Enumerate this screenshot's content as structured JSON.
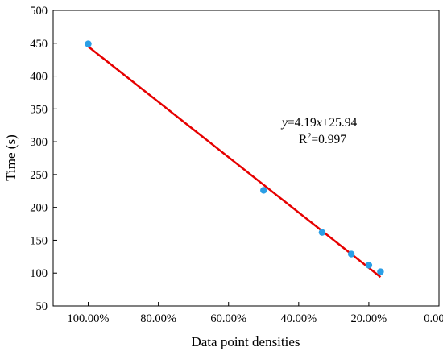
{
  "chart_data": {
    "type": "scatter",
    "title": "",
    "xlabel": "Data point densities",
    "ylabel": "Time (s)",
    "x_reversed": true,
    "xlim": [
      0,
      1.1
    ],
    "ylim": [
      50,
      500
    ],
    "x_ticks": [
      1.0,
      0.8,
      0.6,
      0.4,
      0.2,
      0.0
    ],
    "x_tick_labels": [
      "100.00%",
      "80.00%",
      "60.00%",
      "40.00%",
      "20.00%",
      "0.00%"
    ],
    "y_ticks": [
      50,
      100,
      150,
      200,
      250,
      300,
      350,
      400,
      450,
      500
    ],
    "y_tick_labels": [
      "50",
      "100",
      "150",
      "200",
      "250",
      "300",
      "350",
      "400",
      "450",
      "500"
    ],
    "grid": false,
    "legend": false,
    "points": [
      {
        "x": 1.0,
        "y": 449
      },
      {
        "x": 0.5,
        "y": 226
      },
      {
        "x": 0.3333,
        "y": 162
      },
      {
        "x": 0.25,
        "y": 129
      },
      {
        "x": 0.2,
        "y": 112
      },
      {
        "x": 0.1667,
        "y": 102
      }
    ],
    "fit_line": {
      "x": [
        1.0,
        0.1667
      ],
      "y": [
        445,
        94
      ]
    },
    "annotation": {
      "equation": {
        "y": "y",
        "mid": "=4.19",
        "x": "x",
        "tail": "+25.94"
      },
      "r2": {
        "R": "R",
        "sup": "2",
        "val": "=0.997"
      }
    },
    "colors": {
      "points": "#2b9fe6",
      "fit_line": "#e60000",
      "axes": "#000000",
      "background": "#ffffff"
    }
  }
}
